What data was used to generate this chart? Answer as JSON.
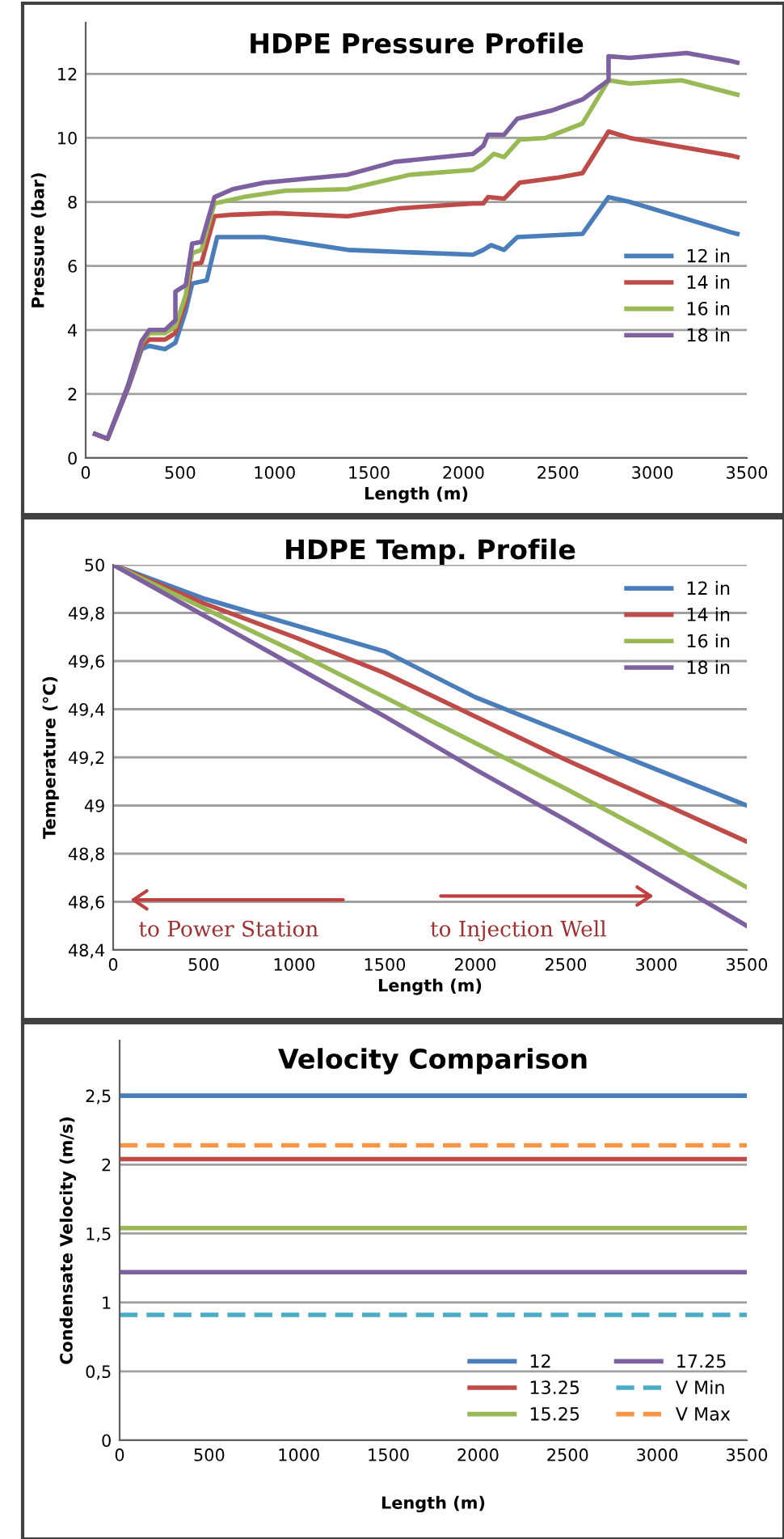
{
  "chart_data": [
    {
      "type": "line",
      "title": "HDPE Pressure Profile",
      "xlabel": "Length (m)",
      "ylabel": "Pressure (bar)",
      "xlim": [
        0,
        3500
      ],
      "xticks": [
        0,
        500,
        1000,
        1500,
        2000,
        2500,
        3000,
        3500
      ],
      "ylim": [
        0,
        13.6
      ],
      "yticks": [
        0,
        2,
        4,
        6,
        8,
        10,
        12
      ],
      "grid": "y",
      "legend": "right",
      "series": [
        {
          "name": "12 in",
          "color": "#4a7ebb",
          "x": [
            50,
            116,
            226,
            296,
            337,
            420,
            475,
            530,
            564,
            641,
            696,
            945,
            1387,
            2050,
            2105,
            2146,
            2215,
            2285,
            2630,
            2768,
            2880,
            3417,
            3450
          ],
          "values": [
            0.75,
            0.6,
            2.2,
            3.4,
            3.5,
            3.4,
            3.6,
            4.6,
            5.45,
            5.55,
            6.9,
            6.9,
            6.5,
            6.35,
            6.5,
            6.65,
            6.5,
            6.9,
            7.0,
            8.15,
            8.0,
            7.05,
            7.0
          ]
        },
        {
          "name": "14 in",
          "color": "#be4b48",
          "x": [
            50,
            116,
            226,
            296,
            337,
            420,
            475,
            530,
            564,
            613,
            682,
            779,
            1000,
            1387,
            1663,
            2050,
            2105,
            2130,
            2215,
            2298,
            2491,
            2630,
            2768,
            2880,
            3417,
            3450
          ],
          "values": [
            0.75,
            0.6,
            2.25,
            3.5,
            3.7,
            3.7,
            3.9,
            4.9,
            6.05,
            6.1,
            7.55,
            7.6,
            7.65,
            7.55,
            7.8,
            7.95,
            7.95,
            8.15,
            8.1,
            8.6,
            8.75,
            8.9,
            10.2,
            10.0,
            9.45,
            9.4
          ]
        },
        {
          "name": "16 in",
          "color": "#98b954",
          "x": [
            226,
            296,
            337,
            420,
            475,
            530,
            564,
            613,
            682,
            834,
            1055,
            1387,
            1718,
            2050,
            2105,
            2160,
            2215,
            2298,
            2436,
            2630,
            2768,
            2880,
            3154,
            3417,
            3450
          ],
          "values": [
            2.3,
            3.6,
            3.9,
            3.9,
            4.1,
            5.1,
            6.4,
            6.5,
            7.95,
            8.15,
            8.35,
            8.4,
            8.85,
            9.0,
            9.2,
            9.5,
            9.4,
            9.95,
            10.0,
            10.45,
            11.8,
            11.7,
            11.8,
            11.4,
            11.35
          ]
        },
        {
          "name": "18 in",
          "color": "#7d60a0",
          "x": [
            50,
            116,
            226,
            296,
            337,
            420,
            475,
            475,
            530,
            564,
            613,
            682,
            779,
            945,
            1387,
            1635,
            2050,
            2105,
            2130,
            2215,
            2285,
            2464,
            2630,
            2768,
            2768,
            2880,
            3182,
            3417,
            3450
          ],
          "values": [
            0.75,
            0.6,
            2.3,
            3.65,
            4.0,
            4.0,
            4.3,
            5.2,
            5.4,
            6.7,
            6.75,
            8.15,
            8.4,
            8.6,
            8.85,
            9.25,
            9.5,
            9.75,
            10.1,
            10.1,
            10.6,
            10.85,
            11.2,
            11.8,
            12.55,
            12.5,
            12.65,
            12.4,
            12.35
          ]
        }
      ]
    },
    {
      "type": "line",
      "title": "HDPE Temp. Profile",
      "xlabel": "Length (m)",
      "ylabel": "Temperature (°C)",
      "xlim": [
        0,
        3500
      ],
      "xticks": [
        0,
        500,
        1000,
        1500,
        2000,
        2500,
        3000,
        3500
      ],
      "ylim": [
        48.4,
        50
      ],
      "yticks": [
        {
          "value": 48.4,
          "label": "48,4"
        },
        {
          "value": 48.6,
          "label": "48,6"
        },
        {
          "value": 48.8,
          "label": "48,8"
        },
        49,
        {
          "value": 49.2,
          "label": "49,2"
        },
        {
          "value": 49.4,
          "label": "49,4"
        },
        {
          "value": 49.6,
          "label": "49,6"
        },
        {
          "value": 49.8,
          "label": "49,8"
        },
        50
      ],
      "grid": "y",
      "legend": "top right",
      "x": [
        0,
        500,
        1000,
        1500,
        2000,
        2500,
        3000,
        3500
      ],
      "annotations": [
        "to Power Station",
        "to Injection Well"
      ],
      "series": [
        {
          "name": "12 in",
          "color": "#4a7ebb",
          "values": [
            50,
            49.86,
            49.75,
            49.64,
            49.45,
            49.3,
            49.15,
            49.0
          ]
        },
        {
          "name": "14 in",
          "color": "#be4b48",
          "values": [
            50,
            49.84,
            49.7,
            49.55,
            49.37,
            49.19,
            49.02,
            48.85
          ]
        },
        {
          "name": "16 in",
          "color": "#98b954",
          "values": [
            50,
            49.82,
            49.64,
            49.45,
            49.26,
            49.07,
            48.87,
            48.66
          ]
        },
        {
          "name": "18 in",
          "color": "#7d60a0",
          "values": [
            50,
            49.79,
            49.58,
            49.37,
            49.15,
            48.94,
            48.72,
            48.5
          ]
        }
      ]
    },
    {
      "type": "line",
      "title": "Velocity Comparison",
      "xlabel": "Length (m)",
      "ylabel": "Condensate Velocity (m/s)",
      "xlim": [
        0,
        3500
      ],
      "xticks": [
        0,
        500,
        1000,
        1500,
        2000,
        2500,
        3000,
        3500
      ],
      "ylim": [
        0,
        2.9
      ],
      "yticks": [
        0,
        {
          "value": 0.5,
          "label": "0,5"
        },
        1,
        {
          "value": 1.5,
          "label": "1,5"
        },
        2,
        {
          "value": 2.5,
          "label": "2,5"
        }
      ],
      "grid": "y",
      "legend": "bottom right",
      "x": [
        0,
        3500
      ],
      "series": [
        {
          "name": "12",
          "color": "#4a7ebb",
          "values": [
            2.5,
            2.5
          ]
        },
        {
          "name": "13.25",
          "color": "#be4b48",
          "values": [
            2.04,
            2.04
          ]
        },
        {
          "name": "15.25",
          "color": "#98b954",
          "values": [
            1.54,
            1.54
          ]
        },
        {
          "name": "17.25",
          "color": "#7d60a0",
          "values": [
            1.22,
            1.22
          ]
        },
        {
          "name": "V Min",
          "color": "#4bacc6",
          "line_style": "dashed",
          "values": [
            0.91,
            0.91
          ]
        },
        {
          "name": "V Max",
          "color": "#f79646",
          "line_style": "dashed",
          "values": [
            2.14,
            2.14
          ]
        }
      ]
    }
  ]
}
